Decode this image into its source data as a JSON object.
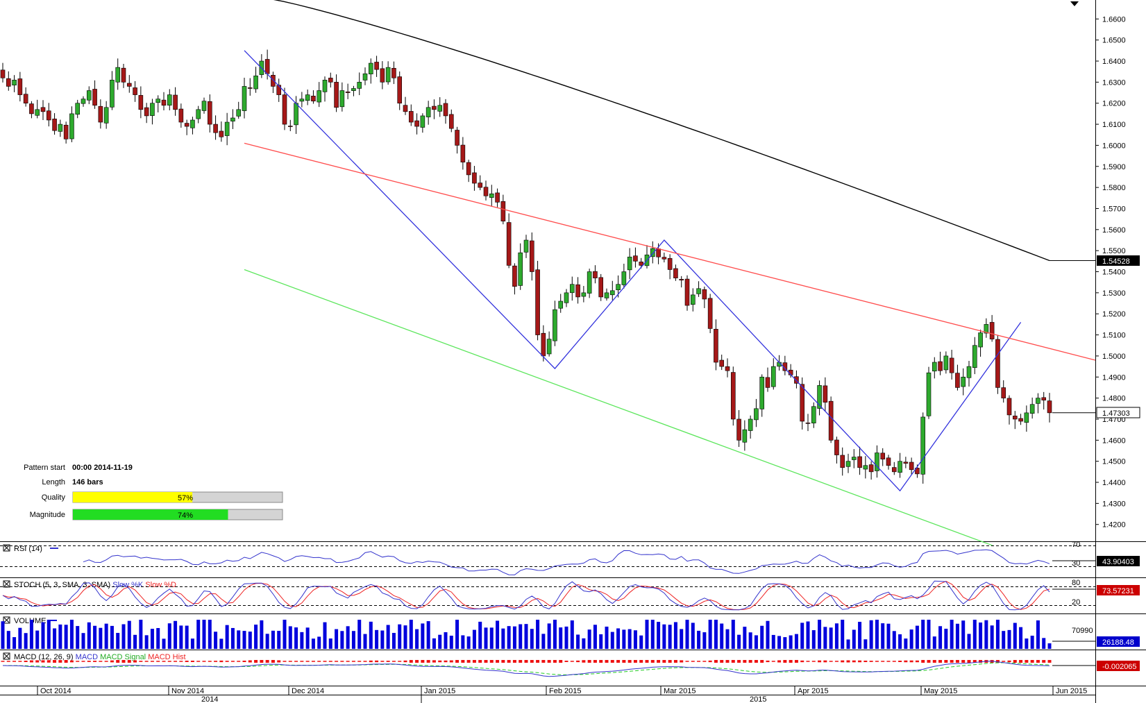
{
  "chart_data": {
    "type": "candlestick",
    "price_axis": {
      "ticks": [
        "1.6600",
        "1.6500",
        "1.6400",
        "1.6300",
        "1.6200",
        "1.6100",
        "1.6000",
        "1.5900",
        "1.5800",
        "1.5700",
        "1.5600",
        "1.5500",
        "1.5400",
        "1.5300",
        "1.5200",
        "1.5100",
        "1.5000",
        "1.4900",
        "1.4800",
        "1.4700",
        "1.4600",
        "1.4500",
        "1.4400",
        "1.4300",
        "1.4200"
      ],
      "range": [
        1.412,
        1.669
      ]
    },
    "moving_average_value": "1.54528",
    "last_price": "1.47303",
    "closes": [
      1.632,
      1.628,
      1.631,
      1.624,
      1.62,
      1.615,
      1.617,
      1.616,
      1.612,
      1.607,
      1.61,
      1.603,
      1.615,
      1.62,
      1.622,
      1.626,
      1.619,
      1.611,
      1.618,
      1.631,
      1.637,
      1.63,
      1.628,
      1.624,
      1.617,
      1.614,
      1.62,
      1.622,
      1.619,
      1.624,
      1.617,
      1.611,
      1.609,
      1.612,
      1.617,
      1.621,
      1.61,
      1.606,
      1.604,
      1.611,
      1.613,
      1.617,
      1.628,
      1.627,
      1.633,
      1.64,
      1.634,
      1.628,
      1.624,
      1.61,
      1.609,
      1.62,
      1.622,
      1.624,
      1.621,
      1.626,
      1.631,
      1.63,
      1.618,
      1.626,
      1.625,
      1.627,
      1.63,
      1.634,
      1.639,
      1.636,
      1.63,
      1.637,
      1.632,
      1.62,
      1.616,
      1.611,
      1.609,
      1.614,
      1.618,
      1.617,
      1.619,
      1.614,
      1.608,
      1.6,
      1.592,
      1.586,
      1.582,
      1.58,
      1.576,
      1.577,
      1.573,
      1.564,
      1.543,
      1.533,
      1.549,
      1.555,
      1.54,
      1.51,
      1.5,
      1.508,
      1.522,
      1.526,
      1.53,
      1.534,
      1.528,
      1.53,
      1.54,
      1.537,
      1.528,
      1.53,
      1.531,
      1.534,
      1.54,
      1.547,
      1.545,
      1.543,
      1.548,
      1.551,
      1.547,
      1.546,
      1.541,
      1.537,
      1.536,
      1.524,
      1.529,
      1.532,
      1.527,
      1.513,
      1.497,
      1.495,
      1.493,
      1.47,
      1.46,
      1.465,
      1.47,
      1.475,
      1.49,
      1.485,
      1.495,
      1.497,
      1.493,
      1.491,
      1.487,
      1.469,
      1.468,
      1.476,
      1.486,
      1.478,
      1.46,
      1.453,
      1.447,
      1.45,
      1.452,
      1.447,
      1.448,
      1.445,
      1.454,
      1.451,
      1.448,
      1.445,
      1.45,
      1.449,
      1.446,
      1.444,
      1.471,
      1.492,
      1.497,
      1.493,
      1.5,
      1.492,
      1.485,
      1.49,
      1.495,
      1.505,
      1.511,
      1.515,
      1.508,
      1.485,
      1.48,
      1.472,
      1.47,
      1.469,
      1.473,
      1.477,
      1.48,
      1.479,
      1.473
    ],
    "pattern": {
      "start": "00:00 2014-11-19",
      "length": "146 bars",
      "quality": 57,
      "magnitude": 74,
      "zigzag_prices": [
        1.645,
        1.494,
        1.555,
        1.436,
        1.516
      ],
      "resistance_line": [
        1.601,
        1.498
      ],
      "support_line": [
        1.541,
        1.41
      ]
    },
    "months": [
      "Oct 2014",
      "Nov 2014",
      "Dec 2014",
      "Jan 2015",
      "Feb 2015",
      "Mar 2015",
      "Apr 2015",
      "May 2015",
      "Jun 2015"
    ],
    "years": [
      "2014",
      "2015"
    ],
    "indicators": {
      "rsi": {
        "label": "RSI (14)",
        "value": "43.90403",
        "levels": [
          "70",
          "30"
        ],
        "level_values": [
          70,
          30
        ]
      },
      "stoch": {
        "label": "STOCH (5, 3, SMA, 3, SMA)",
        "k_label": "Slow %K",
        "d_label": "Slow %D",
        "value": "73.57231",
        "levels": [
          "80",
          "20"
        ],
        "level_values": [
          80,
          20
        ]
      },
      "volume": {
        "label": "VOLUME",
        "value": "26188.48",
        "tick": "70990"
      },
      "macd": {
        "label": "MACD (12, 26, 9)",
        "macd_label": "MACD",
        "signal_label": "MACD Signal",
        "hist_label": "MACD Hist",
        "value": "-0.002065"
      }
    },
    "colors": {
      "up": "#2eaa2e",
      "down": "#a51818",
      "zigzag": "#3333dd",
      "resistance": "#ff4d4d",
      "support": "#5ce65c",
      "ma": "#000000",
      "volume": "#0000dd",
      "rsi": "#3333cc",
      "stoch_k": "#3333cc",
      "stoch_d": "#ee2222",
      "quality": "#ffff00",
      "magnitude": "#22dd22"
    }
  }
}
